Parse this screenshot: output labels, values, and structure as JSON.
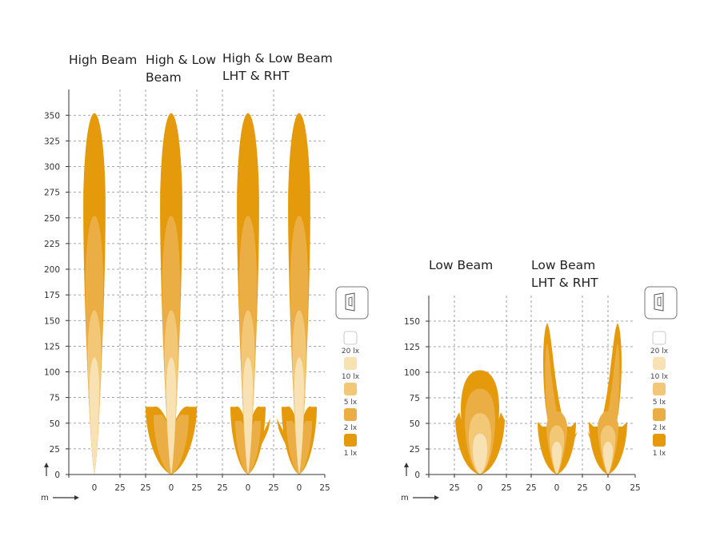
{
  "colors": {
    "lx1": "#E59A0B",
    "lx2": "#EBAE45",
    "lx5": "#F2C877",
    "lx10": "#F8E2B4",
    "lx20": "#FFFFFF",
    "grid": "#8a8a8a",
    "axis": "#333333"
  },
  "units": {
    "axis_unit": "m"
  },
  "scale_icon": {
    "label": "1m"
  },
  "legend": [
    {
      "label": "20 lx",
      "color_key": "lx20"
    },
    {
      "label": "10 lx",
      "color_key": "lx10"
    },
    {
      "label": "5 lx",
      "color_key": "lx5"
    },
    {
      "label": "2 lx",
      "color_key": "lx2"
    },
    {
      "label": "1 lx",
      "color_key": "lx1"
    }
  ],
  "chart_data": [
    {
      "type": "beam-pattern",
      "y_ticks": [
        "0",
        "25",
        "50",
        "75",
        "100",
        "125",
        "150",
        "175",
        "200",
        "225",
        "250",
        "275",
        "300",
        "325",
        "350"
      ],
      "ylim": [
        0,
        350
      ],
      "grid": true,
      "panels": [
        {
          "title_lines": [
            "High Beam"
          ],
          "x_ticks": [
            "0",
            "25"
          ],
          "pattern": "high",
          "max_range_m": 350
        },
        {
          "title_lines": [
            "High & Low",
            "Beam"
          ],
          "x_ticks": [
            "25",
            "0",
            "25"
          ],
          "pattern": "high-low",
          "max_range_m": 350
        },
        {
          "title_lines": [
            "High & Low Beam",
            "LHT & RHT"
          ],
          "x_ticks": [
            "25",
            "0",
            "25",
            "0",
            "25"
          ],
          "pattern": "high-low-lht-rht",
          "max_range_m": 350
        }
      ]
    },
    {
      "type": "beam-pattern",
      "y_ticks": [
        "0",
        "25",
        "50",
        "75",
        "100",
        "125",
        "150"
      ],
      "ylim": [
        0,
        150
      ],
      "grid": true,
      "panels": [
        {
          "title_lines": [
            "Low Beam"
          ],
          "x_ticks": [
            "25",
            "0",
            "25"
          ],
          "pattern": "low",
          "max_range_m": 100
        },
        {
          "title_lines": [
            "Low Beam",
            "LHT & RHT"
          ],
          "x_ticks": [
            "25",
            "0",
            "25",
            "0",
            "25"
          ],
          "pattern": "low-lht-rht",
          "max_range_m": 148
        }
      ]
    }
  ]
}
